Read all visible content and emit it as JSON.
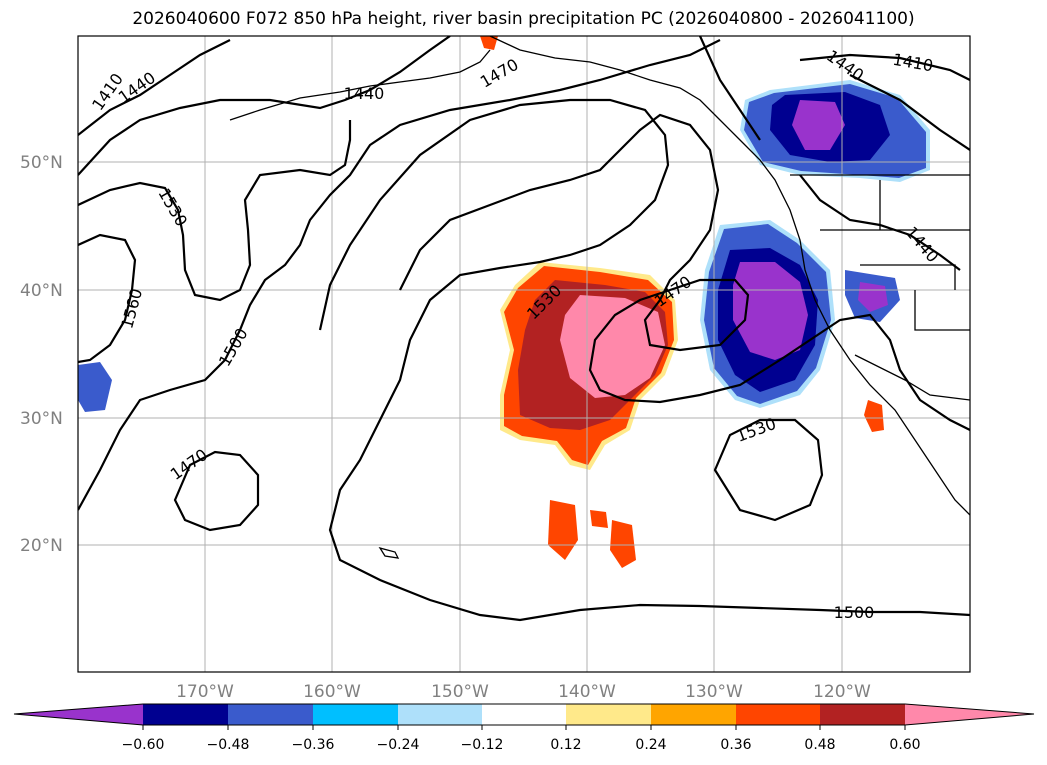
{
  "title": "2026040600 F072 850 hPa height, river basin precipitation PC (2026040800 - 2026041100)",
  "map": {
    "lat_labels": [
      "50°N",
      "40°N",
      "30°N",
      "20°N"
    ],
    "lon_labels": [
      "170°W",
      "160°W",
      "150°W",
      "140°W",
      "130°W",
      "120°W"
    ],
    "contour_labels": [
      "1410",
      "1440",
      "1470",
      "1500",
      "1530",
      "1560",
      "1440",
      "1470",
      "1410",
      "1440",
      "1440",
      "1470",
      "1530",
      "1530",
      "1500",
      "1500",
      "1470",
      "1470"
    ]
  },
  "colorbar": {
    "colors": [
      "#9933cc",
      "#000090",
      "#3a5bcc",
      "#00bfff",
      "#aee0fa",
      "#ffffff",
      "#ffe98a",
      "#ffa500",
      "#ff4500",
      "#b22222",
      "#ff88aa"
    ],
    "ticks": [
      "−0.60",
      "−0.48",
      "−0.36",
      "−0.24",
      "−0.12",
      "0.12",
      "0.24",
      "0.36",
      "0.48",
      "0.60"
    ]
  },
  "anomaly_colors": {
    "neg_strong": "#9933cc",
    "neg_dark": "#000090",
    "neg_mid": "#3a5bcc",
    "neg_light": "#00bfff",
    "pos_light": "#ffe98a",
    "pos_orange": "#ffa500",
    "pos_red": "#ff4500",
    "pos_dark": "#b22222",
    "pos_pink": "#ff88aa"
  }
}
